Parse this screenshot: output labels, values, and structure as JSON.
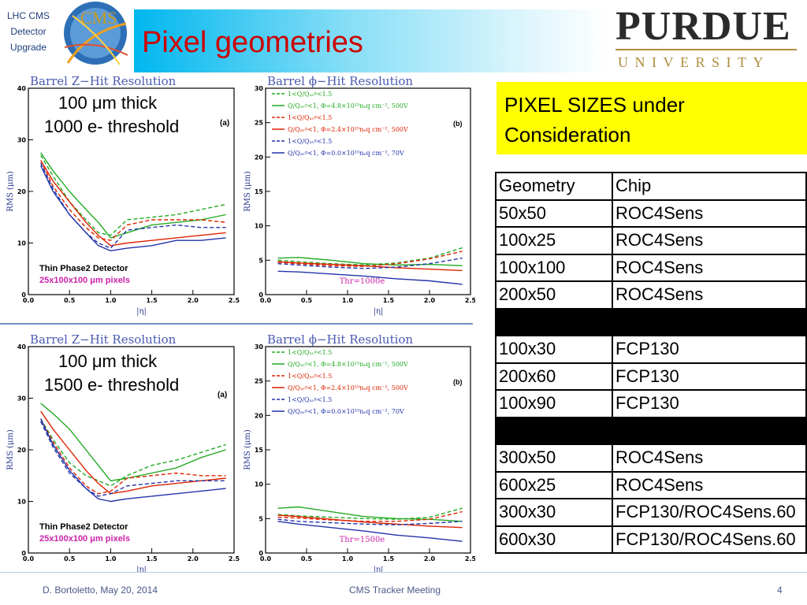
{
  "header": {
    "left_text": [
      "LHC CMS",
      "Detector",
      "Upgrade"
    ],
    "title": "Pixel geometries",
    "logo_purdue_word": "PURDUE",
    "logo_purdue_sub": "UNIVERSITY",
    "logo_cms_text": "CMS"
  },
  "plots": {
    "top_left": {
      "title": "Barrel Z−Hit Resolution",
      "overlay_line1": "100 μm thick",
      "overlay_line2": "1000 e- threshold",
      "tag": "(a)",
      "ylabel": "RMS (μm)",
      "xlabel": "|η|",
      "note1": "Thin Phase2 Detector",
      "note2": "25x100x100 μm pixels"
    },
    "top_right": {
      "title": "Barrel ϕ−Hit Resolution",
      "tag": "(b)",
      "ylabel": "RMS (μm)",
      "xlabel": "|η|",
      "thr": "Thr=1000e",
      "legend": [
        {
          "text": "1<Q/Qₐᵥᵍ<1.5",
          "color": "#22aa22",
          "dash": true
        },
        {
          "text": "Q/Qₐᵥᵍ<1, Φ=4.8×10¹⁵nₑq cm⁻², 500V",
          "color": "#22aa22",
          "dash": false
        },
        {
          "text": "1<Q/Qₐᵥᵍ<1.5",
          "color": "#dd2200",
          "dash": true
        },
        {
          "text": "Q/Qₐᵥᵍ<1, Φ=2.4×10¹⁵nₑq cm⁻², 500V",
          "color": "#dd2200",
          "dash": false
        },
        {
          "text": "1<Q/Qₐᵥᵍ<1.5",
          "color": "#2233aa",
          "dash": true
        },
        {
          "text": "Q/Qₐᵥᵍ<1, Φ=0.0×10¹⁵nₑq cm⁻², 70V",
          "color": "#2233aa",
          "dash": false
        }
      ]
    },
    "bottom_left": {
      "title": "Barrel Z−Hit Resolution",
      "overlay_line1": "100 μm thick",
      "overlay_line2": "1500 e- threshold",
      "tag": "(a)",
      "ylabel": "RMS (μm)",
      "xlabel": "|η|",
      "note1": "Thin Phase2 Detector",
      "note2": "25x100x100 μm pixels"
    },
    "bottom_right": {
      "title": "Barrel ϕ−Hit Resolution",
      "tag": "(b)",
      "ylabel": "RMS (μm)",
      "xlabel": "|η|",
      "thr": "Thr=1500e"
    }
  },
  "chart_data": [
    {
      "type": "line",
      "title": "Barrel Z−Hit Resolution",
      "xlabel": "|η|",
      "ylabel": "RMS (μm)",
      "xlim": [
        0,
        2.5
      ],
      "ylim": [
        0,
        40
      ],
      "x": [
        0.15,
        0.3,
        0.5,
        0.7,
        0.85,
        1.0,
        1.2,
        1.5,
        1.8,
        2.1,
        2.4
      ],
      "series": [
        {
          "color": "#22aa22",
          "dash": true,
          "values": [
            27,
            23,
            18,
            14.5,
            12,
            11.5,
            14.5,
            15,
            15.5,
            16.5,
            17.5
          ]
        },
        {
          "color": "#22aa22",
          "dash": false,
          "values": [
            27.5,
            24,
            20,
            16.5,
            14,
            11,
            12,
            13.5,
            14,
            14.5,
            15.5
          ]
        },
        {
          "color": "#dd2200",
          "dash": true,
          "values": [
            26,
            21,
            16.5,
            13,
            11,
            10.5,
            13.5,
            14.5,
            14.5,
            14.5,
            14
          ]
        },
        {
          "color": "#dd2200",
          "dash": false,
          "values": [
            26,
            22,
            18,
            14,
            11.5,
            9.5,
            10,
            10.5,
            11,
            11.5,
            12
          ]
        },
        {
          "color": "#2233aa",
          "dash": true,
          "values": [
            25.5,
            20.5,
            15.5,
            12,
            10,
            9,
            12.5,
            13,
            13.5,
            13,
            13
          ]
        },
        {
          "color": "#2233aa",
          "dash": false,
          "values": [
            25,
            20,
            15.5,
            12,
            9.5,
            8.5,
            9,
            9.5,
            10.5,
            10.5,
            11
          ]
        }
      ]
    },
    {
      "type": "line",
      "title": "Barrel ϕ−Hit Resolution",
      "xlabel": "|η|",
      "ylabel": "RMS (μm)",
      "xlim": [
        0,
        2.5
      ],
      "ylim": [
        0,
        30
      ],
      "x": [
        0.15,
        0.4,
        0.8,
        1.2,
        1.6,
        2.0,
        2.4
      ],
      "series": [
        {
          "color": "#22aa22",
          "dash": true,
          "values": [
            5,
            4.8,
            4.5,
            4.3,
            4.6,
            5.3,
            6.8
          ]
        },
        {
          "color": "#22aa22",
          "dash": false,
          "values": [
            5.3,
            5.4,
            5,
            4.5,
            4.3,
            4.4,
            4.2
          ]
        },
        {
          "color": "#dd2200",
          "dash": true,
          "values": [
            4.7,
            4.5,
            4.2,
            4.1,
            4.5,
            5.2,
            6.3
          ]
        },
        {
          "color": "#dd2200",
          "dash": false,
          "values": [
            4.8,
            4.6,
            4.4,
            4.2,
            3.9,
            3.7,
            3.5
          ]
        },
        {
          "color": "#2233aa",
          "dash": true,
          "values": [
            4.5,
            4.3,
            4,
            3.8,
            4,
            4.5,
            5.3
          ]
        },
        {
          "color": "#2233aa",
          "dash": false,
          "values": [
            3.4,
            3.3,
            3,
            2.7,
            2.3,
            2,
            1.5
          ]
        }
      ]
    },
    {
      "type": "line",
      "title": "Barrel Z−Hit Resolution",
      "xlabel": "|η|",
      "ylabel": "RMS (μm)",
      "xlim": [
        0,
        2.5
      ],
      "ylim": [
        0,
        40
      ],
      "x": [
        0.15,
        0.3,
        0.5,
        0.7,
        0.85,
        1.0,
        1.2,
        1.5,
        1.8,
        2.1,
        2.4
      ],
      "series": [
        {
          "color": "#22aa22",
          "dash": true,
          "values": [
            26,
            22,
            17.5,
            15,
            14,
            13,
            15,
            17,
            18,
            19.5,
            21
          ]
        },
        {
          "color": "#22aa22",
          "dash": false,
          "values": [
            29,
            27,
            24,
            20,
            17,
            14,
            14.5,
            15.5,
            16.5,
            18.5,
            20
          ]
        },
        {
          "color": "#dd2200",
          "dash": true,
          "values": [
            26,
            21.5,
            16.5,
            13,
            11.5,
            12,
            14.5,
            15,
            15.5,
            15,
            15
          ]
        },
        {
          "color": "#dd2200",
          "dash": false,
          "values": [
            27.5,
            24,
            20,
            16,
            13.5,
            11.5,
            12,
            13,
            13.5,
            14,
            14.5
          ]
        },
        {
          "color": "#2233aa",
          "dash": true,
          "values": [
            25.5,
            20.5,
            15.5,
            12.5,
            11,
            11.5,
            13,
            13.5,
            14,
            14,
            14
          ]
        },
        {
          "color": "#2233aa",
          "dash": false,
          "values": [
            26,
            21,
            16,
            12.5,
            10.5,
            10,
            10.5,
            11,
            11.5,
            12,
            12.5
          ]
        }
      ]
    },
    {
      "type": "line",
      "title": "Barrel ϕ−Hit Resolution",
      "xlabel": "|η|",
      "ylabel": "RMS (μm)",
      "xlim": [
        0,
        2.5
      ],
      "ylim": [
        0,
        30
      ],
      "x": [
        0.15,
        0.4,
        0.8,
        1.2,
        1.6,
        2.0,
        2.4
      ],
      "series": [
        {
          "color": "#22aa22",
          "dash": true,
          "values": [
            5.6,
            5.4,
            5.2,
            5,
            4.9,
            5.2,
            6.5
          ]
        },
        {
          "color": "#22aa22",
          "dash": false,
          "values": [
            6.5,
            6.7,
            6,
            5.3,
            5,
            4.9,
            4.6
          ]
        },
        {
          "color": "#dd2200",
          "dash": true,
          "values": [
            5.2,
            5.1,
            4.8,
            4.6,
            4.6,
            4.9,
            6
          ]
        },
        {
          "color": "#dd2200",
          "dash": false,
          "values": [
            5.5,
            5.3,
            4.9,
            4.5,
            4.2,
            3.9,
            3.7
          ]
        },
        {
          "color": "#2233aa",
          "dash": true,
          "values": [
            4.9,
            4.6,
            4.4,
            4.2,
            4.1,
            4.3,
            4.6
          ]
        },
        {
          "color": "#2233aa",
          "dash": false,
          "values": [
            4.6,
            4.2,
            3.7,
            3.2,
            2.6,
            2.2,
            1.7
          ]
        }
      ]
    }
  ],
  "sizes_box": {
    "line1": "PIXEL SIZES under",
    "line2": "Consideration"
  },
  "table": {
    "headers": [
      "Geometry",
      "Chip"
    ],
    "rows": [
      [
        "50x50",
        "ROC4Sens"
      ],
      [
        "100x25",
        "ROC4Sens"
      ],
      [
        "100x100",
        "ROC4Sens"
      ],
      [
        "200x50",
        "ROC4Sens"
      ],
      [
        "",
        ""
      ],
      [
        "100x30",
        "FCP130"
      ],
      [
        "200x60",
        "FCP130"
      ],
      [
        "100x90",
        "FCP130"
      ],
      [
        "",
        ""
      ],
      [
        "300x50",
        "ROC4Sens"
      ],
      [
        "600x25",
        "ROC4Sens"
      ],
      [
        "300x30",
        "FCP130/ROC4Sens.60"
      ],
      [
        "600x30",
        "FCP130/ROC4Sens.60"
      ]
    ]
  },
  "footer": {
    "author_date": "D. Bortoletto,  May 20, 2014",
    "meeting": "CMS Tracker Meeting",
    "page": "4"
  }
}
